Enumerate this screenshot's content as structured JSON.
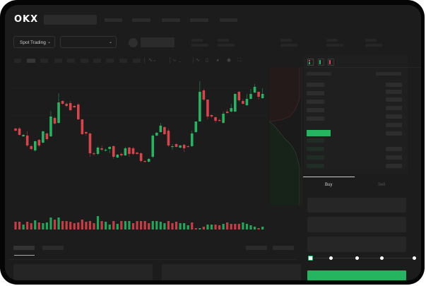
{
  "header": {
    "logo": "OKX",
    "nav_items": [
      "",
      "",
      "",
      "",
      ""
    ]
  },
  "market_bar": {
    "trading_mode": "Spot Trading",
    "trading_mode_icon": "chevron-down-icon",
    "pair_select_icon": "chevron-down-icon"
  },
  "toolbar": {
    "icons": [
      "candle-type-icon",
      "indicator-icon",
      "line-tool-icon",
      "ruler-icon",
      "camera-icon",
      "settings-icon",
      "fullscreen-icon"
    ]
  },
  "orderbook": {
    "view_icons": [
      "orderbook-both-icon",
      "orderbook-bids-icon",
      "orderbook-asks-icon"
    ]
  },
  "order_form": {
    "tabs": [
      "Buy",
      "Sell"
    ],
    "active_tab": "Buy",
    "slider_percent": 0,
    "slider_stops": [
      0,
      25,
      50,
      75,
      100
    ]
  },
  "colors": {
    "up": "#25b561",
    "down": "#d9434a",
    "background": "#1c1c1c",
    "accent": "#25b561"
  },
  "chart_data": {
    "type": "candlestick",
    "title": "",
    "candles": [
      [
        118,
        119,
        114,
        115
      ],
      [
        118,
        120,
        108,
        109
      ],
      [
        107,
        110,
        106,
        109
      ],
      [
        108,
        114,
        92,
        94
      ],
      [
        93,
        95,
        87,
        89
      ],
      [
        87,
        101,
        85,
        100
      ],
      [
        102,
        103,
        92,
        94
      ],
      [
        98,
        115,
        97,
        114
      ],
      [
        111,
        112,
        101,
        103
      ],
      [
        107,
        143,
        106,
        135
      ],
      [
        133,
        135,
        124,
        125
      ],
      [
        126,
        168,
        125,
        155
      ],
      [
        157,
        158,
        152,
        153
      ],
      [
        153,
        155,
        148,
        150
      ],
      [
        154,
        157,
        143,
        144
      ],
      [
        150,
        151,
        147,
        148
      ],
      [
        152,
        154,
        130,
        131
      ],
      [
        131,
        131,
        109,
        110
      ],
      [
        113,
        114,
        108,
        111
      ],
      [
        111,
        112,
        78,
        83
      ],
      [
        83,
        85,
        80,
        82
      ],
      [
        82,
        93,
        80,
        91
      ],
      [
        90,
        94,
        86,
        88
      ],
      [
        87,
        90,
        85,
        88
      ],
      [
        89,
        93,
        83,
        92
      ],
      [
        93,
        94,
        75,
        78
      ],
      [
        77,
        82,
        76,
        81
      ],
      [
        82,
        84,
        78,
        80
      ],
      [
        80,
        92,
        79,
        90
      ],
      [
        91,
        92,
        78,
        82
      ],
      [
        90,
        92,
        80,
        82
      ],
      [
        84,
        85,
        81,
        82
      ],
      [
        83,
        84,
        70,
        72
      ],
      [
        72,
        73,
        70,
        71
      ],
      [
        71,
        76,
        70,
        75
      ],
      [
        78,
        110,
        76,
        108
      ],
      [
        108,
        113,
        107,
        112
      ],
      [
        113,
        126,
        112,
        122
      ],
      [
        120,
        121,
        109,
        110
      ],
      [
        115,
        118,
        92,
        94
      ],
      [
        92,
        96,
        88,
        93
      ],
      [
        96,
        97,
        91,
        92
      ],
      [
        91,
        95,
        90,
        94
      ],
      [
        95,
        96,
        85,
        90
      ],
      [
        93,
        94,
        91,
        92
      ],
      [
        93,
        115,
        92,
        111
      ],
      [
        113,
        128,
        112,
        128
      ],
      [
        128,
        185,
        128,
        170
      ],
      [
        172,
        174,
        157,
        159
      ],
      [
        159,
        159,
        131,
        135
      ],
      [
        137,
        138,
        133,
        135
      ],
      [
        134,
        135,
        126,
        129
      ],
      [
        130,
        132,
        128,
        129
      ],
      [
        126,
        142,
        125,
        139
      ],
      [
        142,
        145,
        139,
        140
      ],
      [
        142,
        153,
        141,
        147
      ],
      [
        142,
        168,
        141,
        167
      ],
      [
        170,
        171,
        156,
        158
      ],
      [
        157,
        160,
        152,
        153
      ],
      [
        151,
        167,
        150,
        160
      ],
      [
        160,
        174,
        159,
        167
      ],
      [
        169,
        181,
        168,
        177
      ],
      [
        170,
        170,
        159,
        163
      ],
      [
        161,
        175,
        160,
        167
      ]
    ],
    "volume": [
      [
        11,
        "down"
      ],
      [
        11,
        "down"
      ],
      [
        7,
        "up"
      ],
      [
        11,
        "down"
      ],
      [
        9,
        "down"
      ],
      [
        13,
        "up"
      ],
      [
        10,
        "down"
      ],
      [
        9,
        "up"
      ],
      [
        10,
        "up"
      ],
      [
        17,
        "up"
      ],
      [
        14,
        "down"
      ],
      [
        17,
        "up"
      ],
      [
        12,
        "down"
      ],
      [
        12,
        "down"
      ],
      [
        11,
        "down"
      ],
      [
        9,
        "down"
      ],
      [
        10,
        "down"
      ],
      [
        14,
        "down"
      ],
      [
        11,
        "down"
      ],
      [
        12,
        "down"
      ],
      [
        9,
        "down"
      ],
      [
        19,
        "up"
      ],
      [
        12,
        "down"
      ],
      [
        11,
        "up"
      ],
      [
        7,
        "up"
      ],
      [
        12,
        "down"
      ],
      [
        8,
        "up"
      ],
      [
        12,
        "down"
      ],
      [
        12,
        "up"
      ],
      [
        12,
        "up"
      ],
      [
        9,
        "down"
      ],
      [
        12,
        "down"
      ],
      [
        12,
        "down"
      ],
      [
        12,
        "down"
      ],
      [
        9,
        "down"
      ],
      [
        12,
        "up"
      ],
      [
        12,
        "up"
      ],
      [
        11,
        "up"
      ],
      [
        9,
        "up"
      ],
      [
        12,
        "down"
      ],
      [
        9,
        "down"
      ],
      [
        11,
        "down"
      ],
      [
        9,
        "up"
      ],
      [
        9,
        "up"
      ],
      [
        6,
        "up"
      ],
      [
        10,
        "down"
      ],
      [
        2,
        "down"
      ],
      [
        2,
        "up"
      ],
      [
        4,
        "down"
      ],
      [
        7,
        "up"
      ],
      [
        7,
        "up"
      ],
      [
        7,
        "down"
      ],
      [
        6,
        "down"
      ],
      [
        8,
        "up"
      ],
      [
        10,
        "down"
      ],
      [
        8,
        "down"
      ],
      [
        8,
        "down"
      ],
      [
        8,
        "down"
      ],
      [
        10,
        "up"
      ],
      [
        8,
        "up"
      ],
      [
        6,
        "up"
      ],
      [
        4,
        "up"
      ],
      [
        2,
        "down"
      ],
      [
        4,
        "up"
      ]
    ],
    "grid": true
  }
}
